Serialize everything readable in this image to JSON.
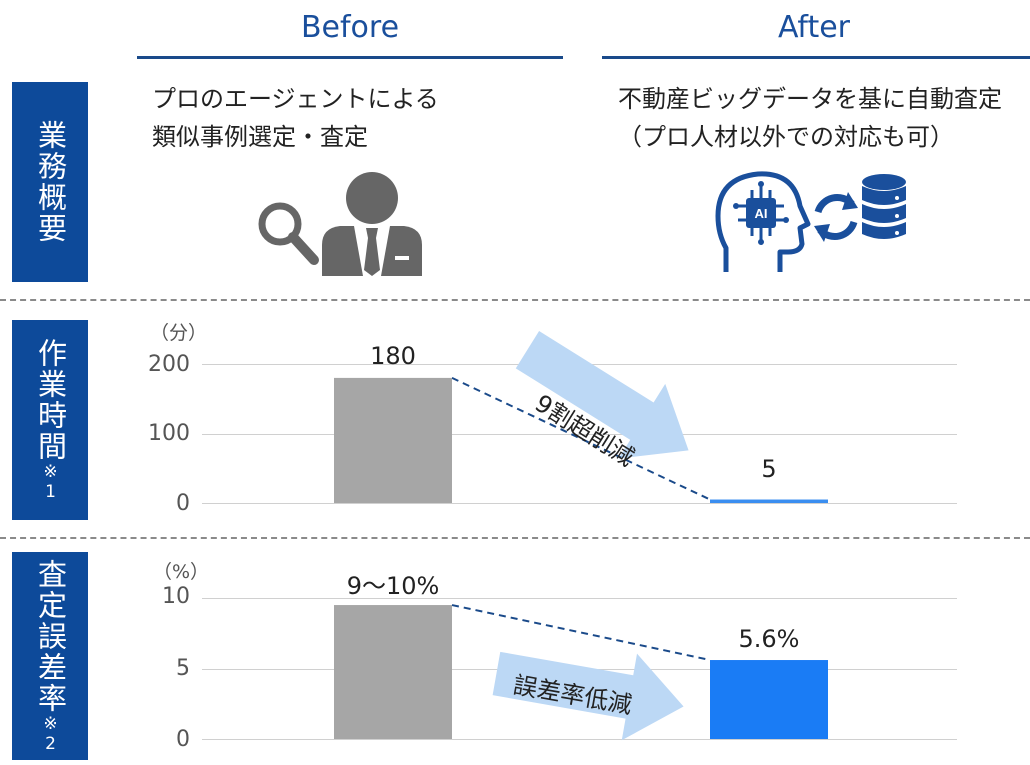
{
  "columns": {
    "before": "Before",
    "after": "After"
  },
  "rows": {
    "overview": {
      "label": "業務概要"
    },
    "time": {
      "label": "作業時間",
      "note": "※1"
    },
    "error": {
      "label": "査定誤差率",
      "note": "※2"
    }
  },
  "overview": {
    "before_desc": [
      "プロのエージェントによる",
      "類似事例選定・査定"
    ],
    "after_desc": [
      "不動産ビッグデータを基に自動査定",
      "（プロ人材以外での対応も可）"
    ],
    "icons": {
      "before": "person-with-magnifier-icon",
      "after": "ai-head-sync-database-icon",
      "ai_chip_text": "AI"
    }
  },
  "chart_data": [
    {
      "type": "bar",
      "unit": "（分）",
      "categories": [
        "Before",
        "After"
      ],
      "values": [
        180,
        5
      ],
      "data_labels": [
        "180",
        "5"
      ],
      "yticks": [
        "200",
        "100",
        "0"
      ],
      "ylim": [
        0,
        200
      ],
      "arrow_label": "9割超削減",
      "colors": [
        "#a6a6a6",
        "#3a8ef0"
      ]
    },
    {
      "type": "bar",
      "unit": "（%）",
      "categories": [
        "Before",
        "After"
      ],
      "values": [
        9.5,
        5.6
      ],
      "data_labels": [
        "9～10%",
        "5.6%"
      ],
      "yticks": [
        "10",
        "5",
        "0"
      ],
      "ylim": [
        0,
        10
      ],
      "arrow_label": "誤差率低減",
      "colors": [
        "#a6a6a6",
        "#1a7cf5"
      ]
    }
  ],
  "colors": {
    "sidebar": "#0d4a9a",
    "heading": "#1a4f9c",
    "arrow": "#bcd8f5",
    "dash_line": "#1a4a8a"
  }
}
